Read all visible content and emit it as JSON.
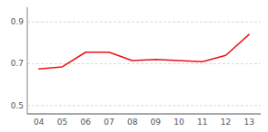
{
  "chart_data": {
    "type": "line",
    "categories": [
      "04",
      "05",
      "06",
      "07",
      "08",
      "09",
      "10",
      "11",
      "12",
      "13"
    ],
    "values": [
      0.675,
      0.685,
      0.755,
      0.755,
      0.715,
      0.72,
      0.715,
      0.71,
      0.74,
      0.84
    ],
    "color": "#ee1111",
    "ylim": [
      0.46,
      0.97
    ],
    "yticks": [
      0.5,
      0.7,
      0.9
    ],
    "grid": true
  }
}
